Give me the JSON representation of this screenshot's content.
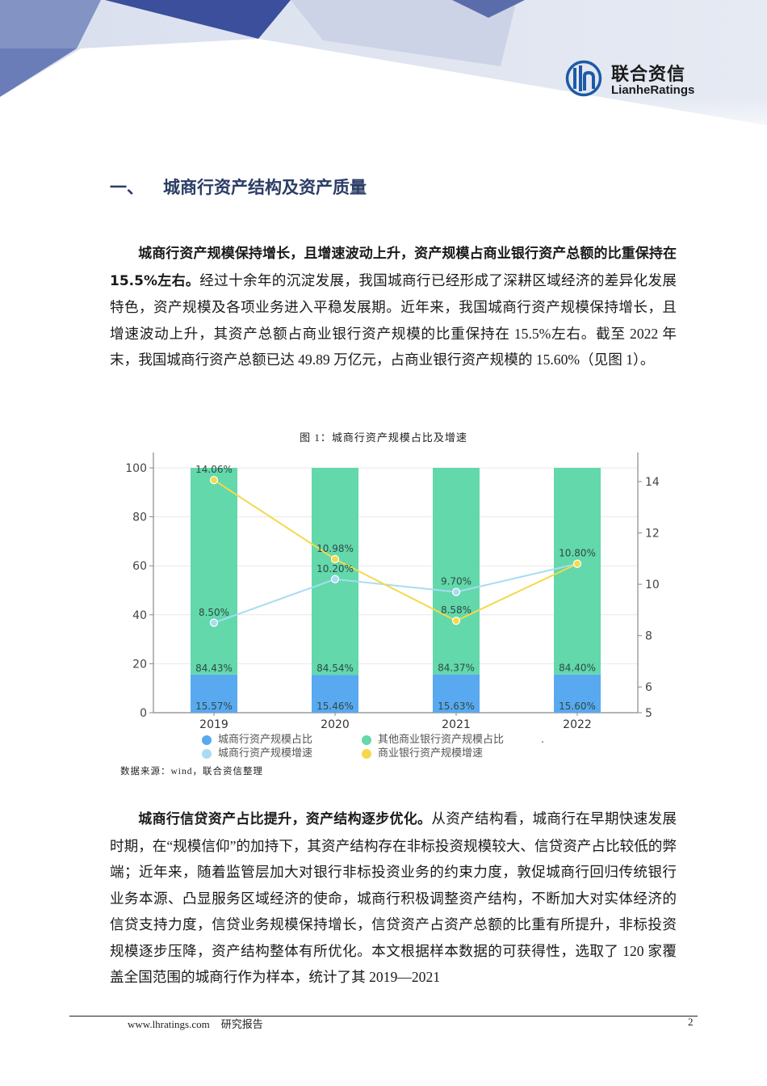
{
  "header": {
    "logo": {
      "name_cn": "联合资信",
      "name_en": "LianheRatings",
      "icon": "lianhe-logo-icon"
    }
  },
  "section": {
    "number": "一、",
    "title": "城商行资产结构及资产质量"
  },
  "paragraphs": [
    {
      "bold_lead": "城商行资产规模保持增长，且增速波动上升，资产规模占商业银行资产总额的比重保持在 15.5%左右。",
      "body": "经过十余年的沉淀发展，我国城商行已经形成了深耕区域经济的差异化发展特色，资产规模及各项业务进入平稳发展期。近年来，我国城商行资产规模保持增长，且增速波动上升，其资产总额占商业银行资产规模的比重保持在 15.5%左右。截至 2022 年末，我国城商行资产总额已达 49.89 万亿元，占商业银行资产规模的 15.60%（见图 1）。"
    },
    {
      "bold_lead": "城商行信贷资产占比提升，资产结构逐步优化。",
      "body": "从资产结构看，城商行在早期快速发展时期，在“规模信仰”的加持下，其资产结构存在非标投资规模较大、信贷资产占比较低的弊端；近年来，随着监管层加大对银行非标投资业务的约束力度，敦促城商行回归传统银行业务本源、凸显服务区域经济的使命，城商行积极调整资产结构，不断加大对实体经济的信贷支持力度，信贷业务规模保持增长，信贷资产占资产总额的比重有所提升，非标投资规模逐步压降，资产结构整体有所优化。本文根据样本数据的可获得性，选取了 120 家覆盖全国范围的城商行作为样本，统计了其 2019—2021"
    }
  ],
  "figure": {
    "caption": "图 1：城商行资产规模占比及增速",
    "source": "数据来源：wind，联合资信整理",
    "legend_extra": "."
  },
  "chart_data": {
    "type": "bar+line",
    "title": "图 1：城商行资产规模占比及增速",
    "categories": [
      "2019",
      "2020",
      "2021",
      "2022"
    ],
    "left_axis": {
      "ticks": [
        0,
        20,
        40,
        60,
        80,
        100
      ],
      "ylim": [
        0,
        100
      ]
    },
    "right_axis": {
      "ticks": [
        5,
        6,
        8,
        10,
        12,
        14
      ],
      "ylim": [
        5,
        14.5
      ]
    },
    "series": [
      {
        "name": "城商行资产规模占比",
        "kind": "bar",
        "stack": "share",
        "axis": "left",
        "color": "#58a9f0",
        "values": [
          15.57,
          15.46,
          15.63,
          15.6
        ],
        "labels": [
          "15.57%",
          "15.46%",
          "15.63%",
          "15.60%"
        ]
      },
      {
        "name": "其他商业银行资产规模占比",
        "kind": "bar",
        "stack": "share",
        "axis": "left",
        "color": "#62d8ab",
        "values": [
          84.43,
          84.54,
          84.37,
          84.4
        ],
        "labels": [
          "84.43%",
          "84.54%",
          "84.37%",
          "84.40%"
        ]
      },
      {
        "name": "城商行资产规模增速",
        "kind": "line",
        "axis": "right",
        "color": "#a8dcf2",
        "values": [
          8.5,
          10.2,
          9.7,
          10.8
        ],
        "labels": [
          "8.50%",
          "10.20%",
          "9.70%",
          ""
        ]
      },
      {
        "name": "商业银行资产规模增速",
        "kind": "line",
        "axis": "right",
        "color": "#f5d94a",
        "values": [
          14.06,
          10.98,
          8.58,
          10.8
        ],
        "labels": [
          "14.06%",
          "10.98%",
          "8.58%",
          "10.80%"
        ]
      }
    ],
    "legend_position": "bottom",
    "grid": true
  },
  "footer": {
    "website": "www.lhratings.com",
    "doc_type": "研究报告",
    "page_number": "2"
  }
}
